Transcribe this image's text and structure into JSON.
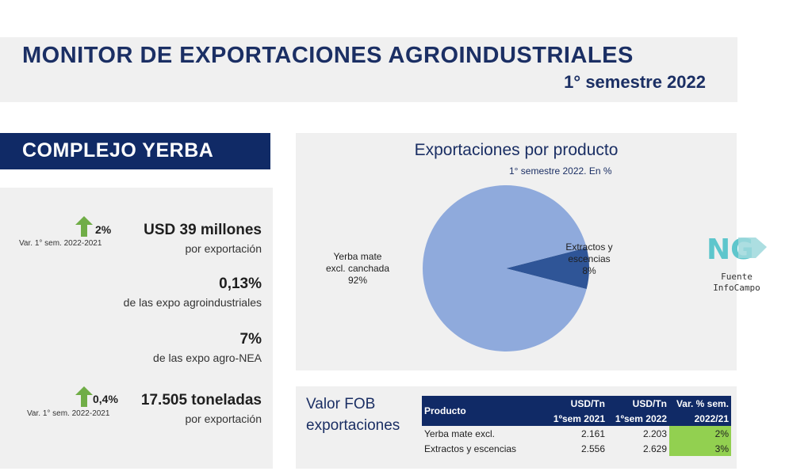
{
  "header": {
    "title": "MONITOR DE EXPORTACIONES AGROINDUSTRIALES",
    "subtitle": "1° semestre 2022"
  },
  "section": {
    "title": "COMPLEJO YERBA"
  },
  "stats": {
    "export_value": {
      "main": "USD 39 millones",
      "sub": "por exportación",
      "var": "2%",
      "var_label": "Var. 1° sem. 2022-2021",
      "trend": "up"
    },
    "agro_share": {
      "main": "0,13%",
      "sub": "de las expo agroindustriales"
    },
    "nea_share": {
      "main": "7%",
      "sub": "de las expo agro-NEA"
    },
    "tonnage": {
      "main": "17.505 toneladas",
      "sub": "por exportación",
      "var": "0,4%",
      "var_label": "Var. 1° sem. 2022-2021",
      "trend": "up"
    }
  },
  "chart_data": {
    "type": "pie",
    "title": "Exportaciones por producto",
    "subtitle": "1° semestre 2022. En %",
    "slices": [
      {
        "label_lines": [
          "Yerba mate",
          "excl. canchada"
        ],
        "value": 92,
        "value_label": "92%",
        "color": "#8faadc"
      },
      {
        "label_lines": [
          "Extractos y",
          "escencias"
        ],
        "value": 8,
        "value_label": "8%",
        "color": "#2f5597"
      }
    ]
  },
  "table": {
    "title_lines": [
      "Valor FOB",
      "exportaciones"
    ],
    "headers": {
      "product": "Producto",
      "col1_top": "USD/Tn",
      "col1_bottom": "1ºsem 2021",
      "col2_top": "USD/Tn",
      "col2_bottom": "1ºsem 2022",
      "col3_top": "Var. % sem.",
      "col3_bottom": "2022/21"
    },
    "rows": [
      {
        "product": "Yerba mate excl.",
        "v2021": "2.161",
        "v2022": "2.203",
        "var": "2%"
      },
      {
        "product": "Extractos y escencias",
        "v2021": "2.556",
        "v2022": "2.629",
        "var": "3%"
      }
    ]
  },
  "logo": {
    "line1": "Fuente",
    "line2": "InfoCampo"
  },
  "colors": {
    "navy": "#102a66",
    "pie_light": "#8faadc",
    "pie_dark": "#2f5597",
    "highlight_green": "#92d050",
    "arrow_green": "#70ad47"
  }
}
